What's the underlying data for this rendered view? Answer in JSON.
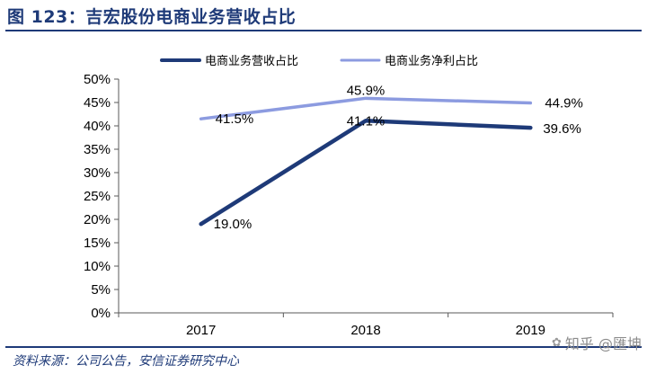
{
  "header": {
    "title": "图 123：吉宏股份电商业务营收占比"
  },
  "footer": {
    "source": "资料来源：公司公告，安信证券研究中心",
    "watermark": "知乎 @匯坤"
  },
  "chart_data": {
    "type": "line",
    "title": "",
    "xlabel": "",
    "ylabel": "",
    "categories": [
      "2017",
      "2018",
      "2019"
    ],
    "ylim": [
      0,
      50
    ],
    "yticks": [
      "0%",
      "5%",
      "10%",
      "15%",
      "20%",
      "25%",
      "30%",
      "35%",
      "40%",
      "45%",
      "50%"
    ],
    "grid": false,
    "legend": "top",
    "series": [
      {
        "name": "电商业务营收占比",
        "color": "#1e3a78",
        "values": [
          19.0,
          41.1,
          39.6
        ],
        "labels": [
          "19.0%",
          "41.1%",
          "39.6%"
        ]
      },
      {
        "name": "电商业务净利占比",
        "color": "#8c9be0",
        "values": [
          41.5,
          45.9,
          44.9
        ],
        "labels": [
          "41.5%",
          "45.9%",
          "44.9%"
        ]
      }
    ]
  }
}
